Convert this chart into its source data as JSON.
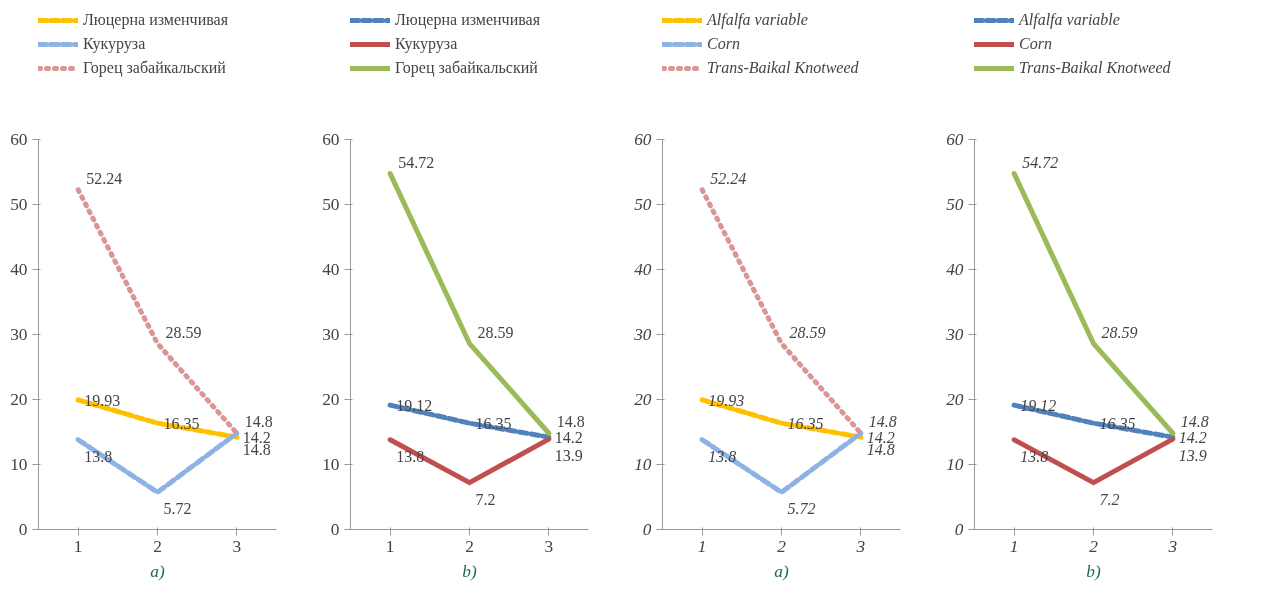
{
  "chart_data": [
    {
      "type": "line",
      "categories": [
        "1",
        "2",
        "3"
      ],
      "ylim": [
        0,
        60
      ],
      "yticks": [
        0,
        10,
        20,
        30,
        40,
        50,
        60
      ],
      "legend": "top",
      "grid": false,
      "data_labels": true,
      "annotations": [
        "a)"
      ],
      "series": [
        {
          "name": "Люцерна изменчивая",
          "color": "#ffc000",
          "line_style": "dashed",
          "values": [
            19.93,
            16.35,
            14.2
          ]
        },
        {
          "name": "Кукуруза",
          "color": "#8db3e2",
          "line_style": "dashed",
          "values": [
            13.8,
            5.72,
            14.8
          ]
        },
        {
          "name": "Горец забайкальский",
          "color": "#d99694",
          "line_style": "dotted",
          "values": [
            52.24,
            28.59,
            14.8
          ]
        }
      ]
    },
    {
      "type": "line",
      "categories": [
        "1",
        "2",
        "3"
      ],
      "ylim": [
        0,
        60
      ],
      "yticks": [
        0,
        10,
        20,
        30,
        40,
        50,
        60
      ],
      "legend": "top",
      "grid": false,
      "data_labels": true,
      "annotations": [
        "b)"
      ],
      "series": [
        {
          "name": "Люцерна изменчивая",
          "color": "#4f81bd",
          "line_style": "dashed",
          "values": [
            19.12,
            16.35,
            14.2
          ]
        },
        {
          "name": "Кукуруза",
          "color": "#c0504d",
          "line_style": "solid",
          "values": [
            13.8,
            7.2,
            13.9
          ]
        },
        {
          "name": "Горец забайкальский",
          "color": "#9bbb59",
          "line_style": "solid",
          "values": [
            54.72,
            28.59,
            14.8
          ]
        }
      ]
    },
    {
      "type": "line",
      "categories": [
        "1",
        "2",
        "3"
      ],
      "ylim": [
        0,
        60
      ],
      "yticks": [
        0,
        10,
        20,
        30,
        40,
        50,
        60
      ],
      "legend": "top",
      "grid": false,
      "data_labels": true,
      "annotations": [
        "a)"
      ],
      "series": [
        {
          "name": "Alfalfa variable",
          "color": "#ffc000",
          "line_style": "dashed",
          "values": [
            19.93,
            16.35,
            14.2
          ]
        },
        {
          "name": "Corn",
          "color": "#8db3e2",
          "line_style": "dashed",
          "values": [
            13.8,
            5.72,
            14.8
          ]
        },
        {
          "name": "Trans-Baikal Knotweed",
          "color": "#d99694",
          "line_style": "dotted",
          "values": [
            52.24,
            28.59,
            14.8
          ]
        }
      ]
    },
    {
      "type": "line",
      "categories": [
        "1",
        "2",
        "3"
      ],
      "ylim": [
        0,
        60
      ],
      "yticks": [
        0,
        10,
        20,
        30,
        40,
        50,
        60
      ],
      "legend": "top",
      "grid": false,
      "data_labels": true,
      "annotations": [
        "b)"
      ],
      "series": [
        {
          "name": "Alfalfa variable",
          "color": "#4f81bd",
          "line_style": "dashed",
          "values": [
            19.12,
            16.35,
            14.2
          ]
        },
        {
          "name": "Corn",
          "color": "#c0504d",
          "line_style": "solid",
          "values": [
            13.8,
            7.2,
            13.9
          ]
        },
        {
          "name": "Trans-Baikal Knotweed",
          "color": "#9bbb59",
          "line_style": "solid",
          "values": [
            54.72,
            28.59,
            14.8
          ]
        }
      ]
    }
  ]
}
